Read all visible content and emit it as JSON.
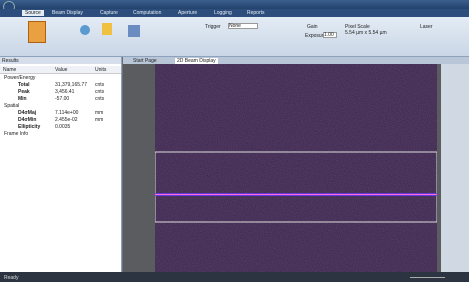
{
  "ribbon": {
    "tabs": [
      "Source",
      "Beam Display",
      "Capture",
      "Computation",
      "Aperture",
      "Logging",
      "Reports"
    ],
    "trigger_label": "Trigger",
    "trigger_value": "None",
    "gain_label": "Gain",
    "exposure_label": "Exposure",
    "exposure_value": "1.00",
    "pixel_scale_label": "Pixel Scale",
    "pixel_scale_value": "5.54 µm x 5.54 µm",
    "laser_label": "Laser"
  },
  "results": {
    "title": "Results",
    "columns": [
      "Name",
      "Value",
      "Units"
    ],
    "rows": [
      [
        "Power/Energy",
        "",
        ""
      ],
      [
        "Total",
        "31,379,165.77",
        "cnts"
      ],
      [
        "Peak",
        "3,456.41",
        "cnts"
      ],
      [
        "Min",
        "-57.00",
        "cnts"
      ],
      [
        "Spatial",
        "",
        ""
      ],
      [
        "D4σMaj",
        "7.114e+00",
        "mm"
      ],
      [
        "D4σMin",
        "2.455e-02",
        "mm"
      ],
      [
        "Ellipticity",
        "0.0035",
        ""
      ],
      [
        "Frame Info",
        "",
        ""
      ]
    ]
  },
  "doc_tabs": [
    "Start Page",
    "2D Beam Display"
  ],
  "status": "Ready"
}
